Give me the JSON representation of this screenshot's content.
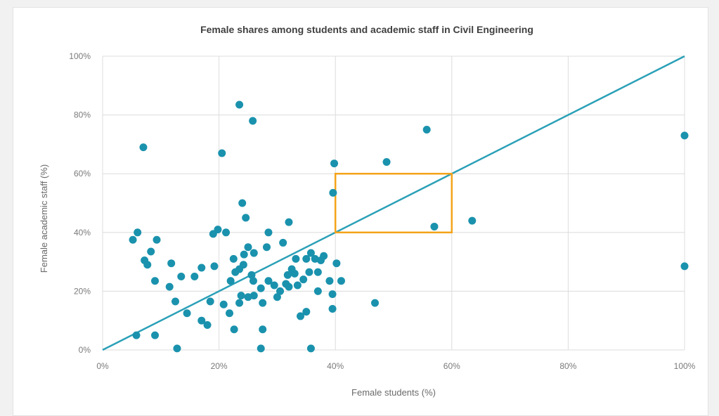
{
  "chart_data": {
    "type": "scatter",
    "title": "Female shares among students and academic staff in Civil Engineering",
    "xlabel": "Female students (%)",
    "ylabel": "Female academic staff (%)",
    "xlim": [
      0,
      100
    ],
    "ylim": [
      0,
      100
    ],
    "x_ticks": [
      "0%",
      "20%",
      "40%",
      "60%",
      "80%",
      "100%"
    ],
    "y_ticks": [
      "0%",
      "20%",
      "40%",
      "60%",
      "80%",
      "100%"
    ],
    "grid": true,
    "reference_line": {
      "from": [
        0,
        0
      ],
      "to": [
        100,
        100
      ]
    },
    "highlight_box": {
      "x": [
        40,
        60
      ],
      "y": [
        40,
        60
      ]
    },
    "colors": {
      "points": "#1a92ad",
      "diagonal": "#2aa0b7",
      "highlight": "#f5a31a",
      "grid": "#dcdcdc"
    },
    "points": [
      [
        7,
        69
      ],
      [
        23.5,
        83.5
      ],
      [
        25.8,
        78
      ],
      [
        20.5,
        67
      ],
      [
        55.7,
        75
      ],
      [
        39.8,
        63.5
      ],
      [
        48.8,
        64
      ],
      [
        100,
        73
      ],
      [
        39.6,
        53.5
      ],
      [
        24,
        50
      ],
      [
        24.6,
        45
      ],
      [
        32,
        43.5
      ],
      [
        57,
        42
      ],
      [
        63.5,
        44
      ],
      [
        100,
        28.5
      ],
      [
        5.2,
        37.5
      ],
      [
        6,
        40
      ],
      [
        9.3,
        37.5
      ],
      [
        8.3,
        33.5
      ],
      [
        7.2,
        30.5
      ],
      [
        7.7,
        29
      ],
      [
        11.8,
        29.5
      ],
      [
        9,
        23.5
      ],
      [
        11.5,
        21.5
      ],
      [
        13.5,
        25
      ],
      [
        15.8,
        25
      ],
      [
        17,
        28
      ],
      [
        19.2,
        28.5
      ],
      [
        19,
        39.5
      ],
      [
        19.8,
        41
      ],
      [
        21.2,
        40
      ],
      [
        22,
        23.5
      ],
      [
        22.8,
        26.5
      ],
      [
        22.5,
        31
      ],
      [
        23.5,
        27.5
      ],
      [
        24.3,
        32.5
      ],
      [
        24.2,
        29
      ],
      [
        25,
        35
      ],
      [
        26,
        33
      ],
      [
        25.6,
        25.5
      ],
      [
        25.9,
        23.5
      ],
      [
        27.2,
        21
      ],
      [
        28.5,
        40
      ],
      [
        28.5,
        23.5
      ],
      [
        28.2,
        35
      ],
      [
        29.5,
        22
      ],
      [
        30,
        18
      ],
      [
        30.5,
        20
      ],
      [
        31,
        36.5
      ],
      [
        31.5,
        22.5
      ],
      [
        32,
        21.5
      ],
      [
        31.8,
        25.5
      ],
      [
        32.5,
        27.5
      ],
      [
        33,
        26
      ],
      [
        33.2,
        31
      ],
      [
        33.5,
        22
      ],
      [
        34.5,
        24
      ],
      [
        35.5,
        26.5
      ],
      [
        35,
        31
      ],
      [
        35.8,
        33
      ],
      [
        36.5,
        31
      ],
      [
        37,
        26.5
      ],
      [
        37.5,
        30.5
      ],
      [
        38,
        32
      ],
      [
        39,
        23.5
      ],
      [
        37,
        20
      ],
      [
        39.5,
        19
      ],
      [
        40.2,
        29.5
      ],
      [
        41,
        23.5
      ],
      [
        39.5,
        14
      ],
      [
        35,
        13
      ],
      [
        34,
        11.5
      ],
      [
        46.8,
        16
      ],
      [
        5.8,
        5
      ],
      [
        9,
        5
      ],
      [
        12.5,
        16.5
      ],
      [
        14.5,
        12.5
      ],
      [
        17,
        10
      ],
      [
        18,
        8.5
      ],
      [
        18.5,
        16.5
      ],
      [
        20.8,
        15.5
      ],
      [
        21.8,
        12.5
      ],
      [
        22.6,
        7
      ],
      [
        23.5,
        16
      ],
      [
        23.8,
        18.5
      ],
      [
        25,
        18
      ],
      [
        26,
        18.5
      ],
      [
        27.5,
        16
      ],
      [
        27.5,
        7
      ],
      [
        12.8,
        0.5
      ],
      [
        27.2,
        0.5
      ],
      [
        35.8,
        0.5
      ]
    ]
  }
}
